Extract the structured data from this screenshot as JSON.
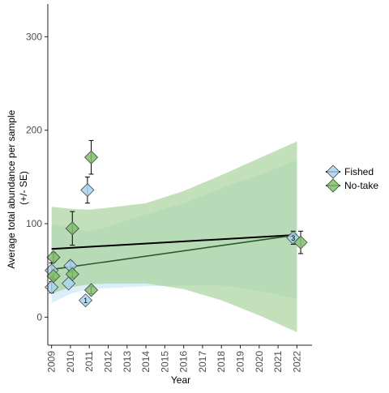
{
  "chart_data": {
    "type": "scatter",
    "xlabel": "Year",
    "ylabel_lines": [
      "Average total abundance per sample",
      "(+/- SE)"
    ],
    "xlim": [
      2008.8,
      2022.8
    ],
    "ylim": [
      -30,
      335
    ],
    "x_ticks": [
      2009,
      2010,
      2011,
      2012,
      2013,
      2014,
      2015,
      2016,
      2017,
      2018,
      2019,
      2020,
      2021,
      2022
    ],
    "y_ticks": [
      0,
      100,
      200,
      300
    ],
    "grid": false,
    "legend": {
      "position": "right",
      "entries": [
        {
          "key": "fished",
          "label": "Fished"
        },
        {
          "key": "notake",
          "label": "No-take"
        }
      ]
    },
    "series": [
      {
        "key": "fished",
        "name": "Fished",
        "marker_fill": "#a9d4ef",
        "ribbon_fill": "#d6ecf8",
        "line_color": "#000000",
        "points": [
          {
            "x": 2009.0,
            "y": 32,
            "se": 6
          },
          {
            "x": 2009.0,
            "y": 50,
            "se": 8
          },
          {
            "x": 2009.9,
            "y": 36,
            "se": 0
          },
          {
            "x": 2010.0,
            "y": 55,
            "se": 5
          },
          {
            "x": 2010.8,
            "y": 18,
            "se": 0,
            "label": "1"
          },
          {
            "x": 2010.9,
            "y": 136,
            "se": 14
          },
          {
            "x": 2021.8,
            "y": 85,
            "se": 7,
            "label": "3"
          }
        ],
        "trend": {
          "x": [
            2009,
            2022
          ],
          "y": [
            73,
            88
          ]
        },
        "ribbon": {
          "x": [
            2009,
            2010,
            2011,
            2012,
            2014,
            2016,
            2018,
            2020,
            2022
          ],
          "lower": [
            15,
            25,
            30,
            31,
            33,
            34,
            34,
            28,
            20
          ],
          "upper": [
            100,
            95,
            92,
            97,
            110,
            122,
            138,
            152,
            168
          ]
        }
      },
      {
        "key": "notake",
        "name": "No-take",
        "marker_fill": "#7fbf6a",
        "ribbon_fill": "#a8d39b",
        "line_color": "#2d5a2d",
        "points": [
          {
            "x": 2009.1,
            "y": 44,
            "se": 4
          },
          {
            "x": 2009.1,
            "y": 64,
            "se": 5
          },
          {
            "x": 2010.1,
            "y": 46,
            "se": 4
          },
          {
            "x": 2010.1,
            "y": 95,
            "se": 18
          },
          {
            "x": 2011.1,
            "y": 171,
            "se": 18
          },
          {
            "x": 2011.1,
            "y": 29,
            "se": 4
          },
          {
            "x": 2022.2,
            "y": 80,
            "se": 12
          }
        ],
        "trend": {
          "x": [
            2009,
            2022
          ],
          "y": [
            51,
            88
          ]
        },
        "ribbon": {
          "x": [
            2009,
            2010,
            2011,
            2012,
            2014,
            2016,
            2018,
            2020,
            2022
          ],
          "lower": [
            25,
            32,
            35,
            36,
            36,
            30,
            18,
            2,
            -16
          ],
          "upper": [
            118,
            116,
            115,
            117,
            122,
            135,
            152,
            170,
            188
          ]
        }
      }
    ]
  },
  "colors": {
    "axis": "#222222",
    "tick_text": "#4d4d4d",
    "title_text": "#000000"
  }
}
